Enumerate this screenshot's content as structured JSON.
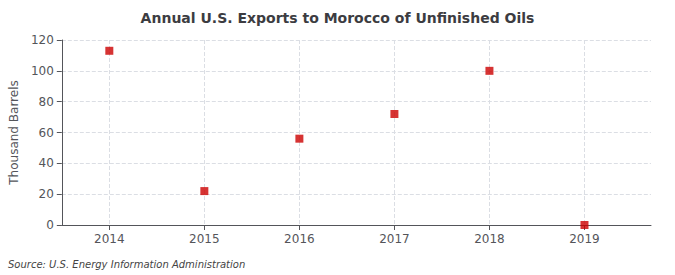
{
  "chart_data": {
    "type": "scatter",
    "title": "Annual U.S. Exports to Morocco of Unfinished Oils",
    "ylabel": "Thousand Barrels",
    "annotation": "Source: U.S. Energy Information Administration",
    "x": [
      2014,
      2015,
      2016,
      2017,
      2018,
      2019
    ],
    "values": [
      113,
      22,
      56,
      72,
      100,
      0
    ],
    "color": "#cc0000",
    "marker": "square",
    "xlim": [
      2013.5,
      2019.7
    ],
    "xticks": [
      2014,
      2015,
      2016,
      2017,
      2018,
      2019
    ],
    "ylim": [
      0,
      120
    ],
    "yticks": [
      0,
      20,
      40,
      60,
      80,
      100,
      120
    ],
    "grid": true
  }
}
